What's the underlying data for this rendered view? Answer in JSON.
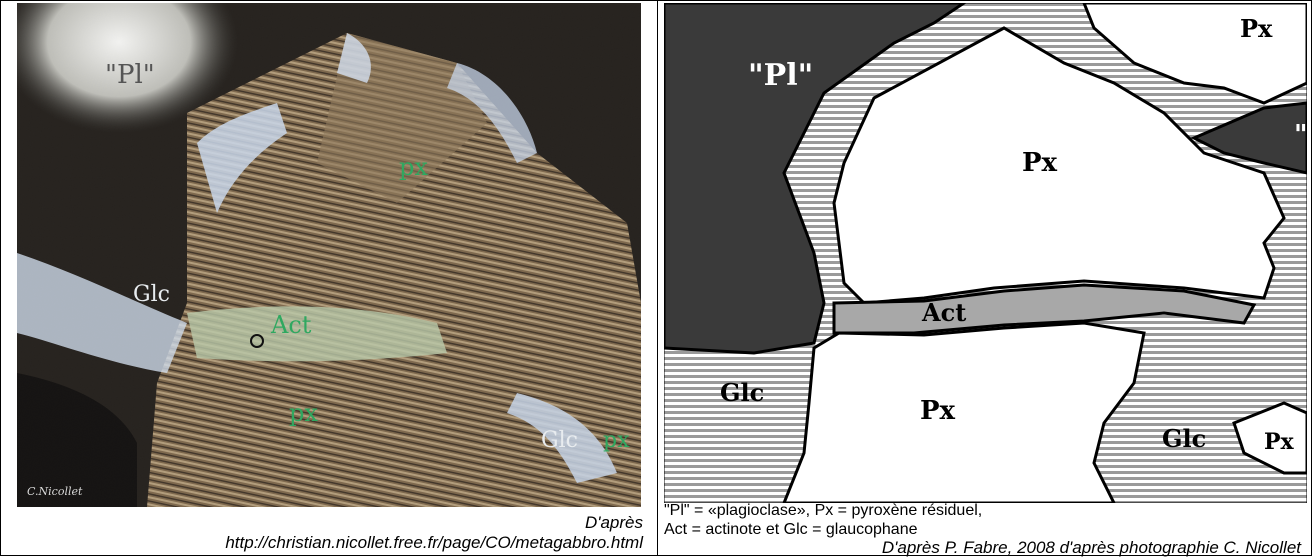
{
  "photo": {
    "labels": {
      "pl": "\"Pl\"",
      "px_top": "px",
      "glc_left": "Glc",
      "act": "Act",
      "px_bottom": "px",
      "glc_right": "Glc",
      "px_right": "px"
    },
    "watermark": "C.Nicollet",
    "caption_line1": "D'après",
    "caption_line2": "http://christian.nicollet.free.fr/page/CO/metagabbro.html"
  },
  "map": {
    "labels": {
      "pl": "\"Pl\"",
      "px_top_right": "Px",
      "pl_right": "\"",
      "px_center": "Px",
      "act": "Act",
      "glc_left": "Glc",
      "px_bottom": "Px",
      "glc_right": "Glc",
      "px_edge": "Px"
    },
    "legend_line1": "\"Pl\" = «plagioclase», Px = pyroxène résiduel,",
    "legend_line2": "Act = actinote et Glc = glaucophane",
    "credit": "D'après P. Fabre, 2008 d'après photographie C. Nicollet"
  },
  "colors": {
    "plagioclase": "#3a3a3a",
    "pyroxene": "#ffffff",
    "actinote": "#a8a8a8",
    "glaucophane_stripe": "#9a9a9a",
    "photo_label_green": "#2fa860",
    "photo_label_white": "#e8ecef"
  }
}
